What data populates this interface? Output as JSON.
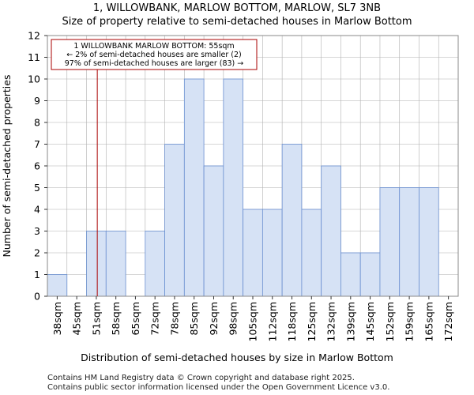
{
  "title": "1, WILLOWBANK, MARLOW BOTTOM, MARLOW, SL7 3NB",
  "subtitle": "Size of property relative to semi-detached houses in Marlow Bottom",
  "footer_line1": "Contains HM Land Registry data © Crown copyright and database right 2025.",
  "footer_line2": "Contains public sector information licensed under the Open Government Licence v3.0.",
  "colors": {
    "bar_fill": "#d6e2f5",
    "bar_stroke": "#6a8fd0",
    "marker": "#aa0000",
    "annotation_border": "#aa0000",
    "grid": "#b0b0b0"
  },
  "chart_data": {
    "type": "bar",
    "xlabel": "Distribution of semi-detached houses by size in Marlow Bottom",
    "ylabel": "Number of semi-detached properties",
    "ylim": [
      0,
      12
    ],
    "yticks": [
      0,
      1,
      2,
      3,
      4,
      5,
      6,
      7,
      8,
      9,
      10,
      11,
      12
    ],
    "categories": [
      "38sqm",
      "45sqm",
      "51sqm",
      "58sqm",
      "65sqm",
      "72sqm",
      "78sqm",
      "85sqm",
      "92sqm",
      "98sqm",
      "105sqm",
      "112sqm",
      "118sqm",
      "125sqm",
      "132sqm",
      "139sqm",
      "145sqm",
      "152sqm",
      "159sqm",
      "165sqm",
      "172sqm"
    ],
    "values": [
      1,
      0,
      3,
      3,
      0,
      3,
      7,
      10,
      6,
      10,
      4,
      4,
      7,
      4,
      6,
      2,
      2,
      5,
      5,
      5,
      0
    ],
    "marker": {
      "value_sqm": 55,
      "bin_position": 2.55
    },
    "annotation": {
      "line1": "1 WILLOWBANK MARLOW BOTTOM: 55sqm",
      "line2": "← 2% of semi-detached houses are smaller (2)",
      "line3": "97% of semi-detached houses are larger (83) →"
    }
  }
}
